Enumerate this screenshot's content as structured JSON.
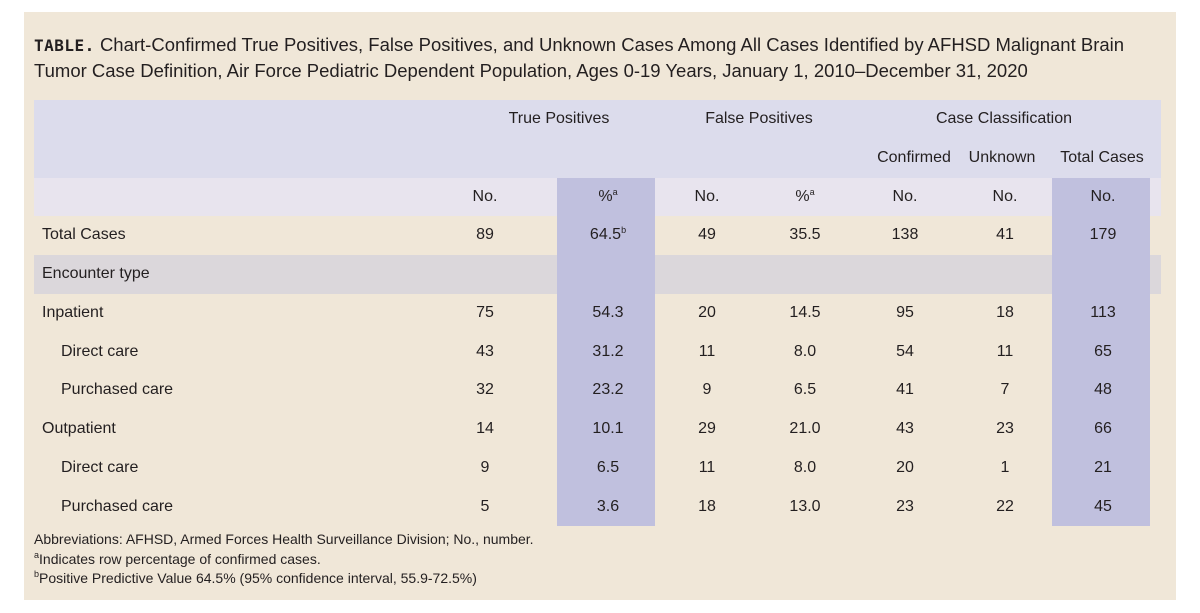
{
  "title": {
    "lead": "TABLE.",
    "text": "Chart-Confirmed True Positives, False Positives, and Unknown Cases Among All Cases Identified by AFHSD Malignant Brain Tumor Case Definition, Air Force Pediatric Dependent Population, Ages 0-19 Years, January 1, 2010–December 31, 2020"
  },
  "header": {
    "group_true_positives": "True Positives",
    "group_false_positives": "False Positives",
    "group_case_classification": "Case Classification",
    "confirmed": "Confirmed",
    "unknown": "Unknown",
    "total_cases": "Total Cases",
    "no": "No.",
    "pct": "%",
    "pct_sup": "a"
  },
  "rows": [
    {
      "label": "Total Cases",
      "tp_no": "89",
      "tp_pct": "64.5",
      "tp_pct_sup": "b",
      "fp_no": "49",
      "fp_pct": "35.5",
      "confirmed": "138",
      "unknown": "41",
      "total": "179"
    },
    {
      "label": "Encounter type",
      "section": true
    },
    {
      "label": "Inpatient",
      "tp_no": "75",
      "tp_pct": "54.3",
      "fp_no": "20",
      "fp_pct": "14.5",
      "confirmed": "95",
      "unknown": "18",
      "total": "113"
    },
    {
      "label": "Direct care",
      "indent": true,
      "tp_no": "43",
      "tp_pct": "31.2",
      "fp_no": "11",
      "fp_pct": "8.0",
      "confirmed": "54",
      "unknown": "11",
      "total": "65"
    },
    {
      "label": "Purchased care",
      "indent": true,
      "tp_no": "32",
      "tp_pct": "23.2",
      "fp_no": "9",
      "fp_pct": "6.5",
      "confirmed": "41",
      "unknown": "7",
      "total": "48"
    },
    {
      "label": "Outpatient",
      "tp_no": "14",
      "tp_pct": "10.1",
      "fp_no": "29",
      "fp_pct": "21.0",
      "confirmed": "43",
      "unknown": "23",
      "total": "66"
    },
    {
      "label": "Direct care",
      "indent": true,
      "tp_no": "9",
      "tp_pct": "6.5",
      "fp_no": "11",
      "fp_pct": "8.0",
      "confirmed": "20",
      "unknown": "1",
      "total": "21"
    },
    {
      "label": "Purchased care",
      "indent": true,
      "tp_no": "5",
      "tp_pct": "3.6",
      "fp_no": "18",
      "fp_pct": "13.0",
      "confirmed": "23",
      "unknown": "22",
      "total": "45"
    }
  ],
  "footnotes": {
    "abbreviations": "Abbreviations: AFHSD, Armed Forces Health Surveillance Division; No., number.",
    "a_mark": "a",
    "a_text": "Indicates row percentage of confirmed cases.",
    "b_mark": "b",
    "b_text": "Positive Predictive Value 64.5% (95% confidence interval, 55.9-72.5%)"
  },
  "colors": {
    "panel": "#f0e7d8",
    "header_band": "#dcdcec",
    "highlight_column": "#c0c0de",
    "section_band": "#dbd7db",
    "text": "#231f20"
  }
}
